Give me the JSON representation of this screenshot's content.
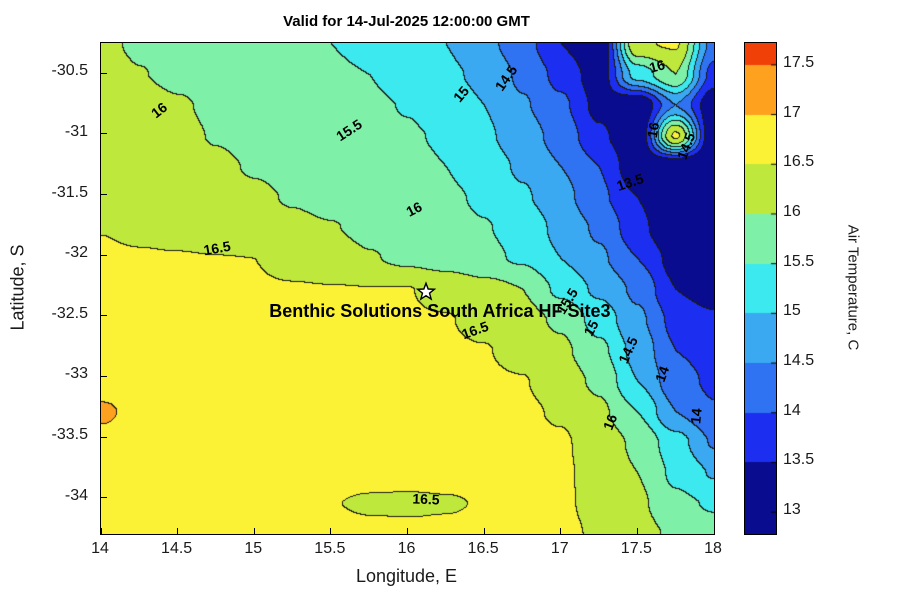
{
  "chart_data": {
    "type": "heatmap",
    "title": "Valid for 14-Jul-2025 12:00:00 GMT",
    "xlabel": "Longitude, E",
    "ylabel": "Latitude, S",
    "colorbar_label": "Air Temperature, C",
    "x_range": [
      14,
      18
    ],
    "y_range": [
      -34.3,
      -30.25
    ],
    "levels": [
      13,
      13.5,
      14,
      14.5,
      15,
      15.5,
      16,
      16.5,
      17,
      17.5
    ],
    "band_colors": [
      "#0a0c8f",
      "#1c2ff0",
      "#2f72f2",
      "#3aa9f2",
      "#3ce9ee",
      "#7ff0a8",
      "#bfe83c",
      "#fcf235",
      "#fea11f",
      "#f04008"
    ],
    "colorbar_range": [
      12.78,
      17.72
    ],
    "x_ticks": [
      {
        "v": 14,
        "label": "14"
      },
      {
        "v": 14.5,
        "label": "14.5"
      },
      {
        "v": 15,
        "label": "15"
      },
      {
        "v": 15.5,
        "label": "15.5"
      },
      {
        "v": 16,
        "label": "16"
      },
      {
        "v": 16.5,
        "label": "16.5"
      },
      {
        "v": 17,
        "label": "17"
      },
      {
        "v": 17.5,
        "label": "17.5"
      },
      {
        "v": 18,
        "label": "18"
      }
    ],
    "y_ticks": [
      {
        "v": -30.5,
        "label": "-30.5"
      },
      {
        "v": -31,
        "label": "-31"
      },
      {
        "v": -31.5,
        "label": "-31.5"
      },
      {
        "v": -32,
        "label": "-32"
      },
      {
        "v": -32.5,
        "label": "-32.5"
      },
      {
        "v": -33,
        "label": "-33"
      },
      {
        "v": -33.5,
        "label": "-33.5"
      },
      {
        "v": -34,
        "label": "-34"
      }
    ],
    "colorbar_ticks": [
      {
        "v": 17.5,
        "label": "17.5"
      },
      {
        "v": 17,
        "label": "17"
      },
      {
        "v": 16.5,
        "label": "16.5"
      },
      {
        "v": 16,
        "label": "16"
      },
      {
        "v": 15.5,
        "label": "15.5"
      },
      {
        "v": 15,
        "label": "15"
      },
      {
        "v": 14.5,
        "label": "14.5"
      },
      {
        "v": 14,
        "label": "14"
      },
      {
        "v": 13.5,
        "label": "13.5"
      },
      {
        "v": 13,
        "label": "13"
      }
    ],
    "values": [
      [
        16.05,
        15.96,
        15.87,
        15.78,
        15.69,
        15.6,
        15.5,
        15.33,
        15.17,
        15.0,
        14.64,
        14.2,
        13.5,
        13.0,
        16.45,
        16.55,
        14.3
      ],
      [
        16.1,
        16.01,
        15.93,
        15.84,
        15.76,
        15.67,
        15.59,
        15.5,
        15.3,
        15.08,
        14.9,
        14.4,
        13.85,
        13.2,
        15.2,
        16.0,
        13.8
      ],
      [
        16.2,
        16.11,
        16.03,
        15.94,
        15.85,
        15.76,
        15.67,
        15.56,
        15.48,
        15.24,
        15.0,
        14.55,
        14.1,
        13.35,
        12.95,
        14.5,
        13.1
      ],
      [
        16.25,
        16.16,
        16.07,
        15.98,
        15.89,
        15.8,
        15.72,
        15.63,
        15.54,
        15.45,
        15.07,
        14.75,
        14.3,
        13.6,
        13.0,
        16.6,
        12.95
      ],
      [
        16.3,
        16.22,
        16.14,
        16.06,
        15.97,
        15.88,
        15.79,
        15.7,
        15.6,
        15.5,
        15.22,
        14.93,
        14.5,
        14.0,
        13.1,
        12.85,
        12.85
      ],
      [
        16.38,
        16.3,
        16.22,
        16.14,
        16.06,
        15.97,
        15.88,
        15.78,
        15.69,
        15.57,
        15.44,
        15.06,
        14.67,
        14.1,
        13.5,
        12.8,
        12.8
      ],
      [
        16.49,
        16.41,
        16.33,
        16.24,
        16.16,
        16.08,
        16.02,
        15.89,
        15.77,
        15.64,
        15.52,
        15.35,
        14.85,
        14.42,
        13.67,
        12.9,
        12.75
      ],
      [
        16.56,
        16.54,
        16.53,
        16.51,
        16.5,
        16.35,
        16.2,
        16.03,
        15.89,
        15.76,
        15.59,
        15.44,
        15.0,
        14.58,
        14.0,
        13.3,
        13.0
      ],
      [
        16.58,
        16.57,
        16.56,
        16.55,
        16.54,
        16.53,
        16.52,
        16.51,
        16.51,
        16.38,
        16.19,
        16.0,
        15.38,
        14.9,
        14.4,
        13.5,
        13.2
      ],
      [
        16.6,
        16.6,
        16.59,
        16.58,
        16.57,
        16.56,
        16.55,
        16.54,
        16.53,
        16.52,
        16.38,
        16.17,
        15.92,
        15.3,
        14.6,
        13.85,
        13.6
      ],
      [
        16.62,
        16.62,
        16.61,
        16.61,
        16.6,
        16.59,
        16.58,
        16.57,
        16.56,
        16.55,
        16.52,
        16.35,
        16.1,
        15.62,
        14.83,
        14.0,
        13.8
      ],
      [
        16.68,
        16.67,
        16.66,
        16.65,
        16.64,
        16.63,
        16.62,
        16.61,
        16.6,
        16.58,
        16.56,
        16.52,
        16.25,
        15.9,
        15.0,
        14.2,
        13.9
      ],
      [
        17.1,
        16.8,
        16.72,
        16.7,
        16.69,
        16.68,
        16.67,
        16.66,
        16.65,
        16.63,
        16.61,
        16.57,
        16.45,
        16.1,
        15.5,
        14.5,
        14.05
      ],
      [
        16.82,
        16.78,
        16.74,
        16.72,
        16.7,
        16.69,
        16.68,
        16.67,
        16.66,
        16.64,
        16.62,
        16.59,
        16.55,
        16.3,
        15.9,
        15.2,
        14.45
      ],
      [
        16.78,
        16.76,
        16.74,
        16.72,
        16.7,
        16.67,
        16.64,
        16.61,
        16.6,
        16.61,
        16.63,
        16.6,
        16.56,
        16.35,
        16.0,
        15.4,
        14.95
      ],
      [
        16.74,
        16.73,
        16.71,
        16.68,
        16.64,
        16.58,
        16.51,
        16.46,
        16.45,
        16.47,
        16.52,
        16.57,
        16.55,
        16.4,
        16.1,
        15.6,
        15.45
      ],
      [
        16.72,
        16.71,
        16.7,
        16.68,
        16.66,
        16.63,
        16.6,
        16.58,
        16.57,
        16.58,
        16.6,
        16.62,
        16.58,
        16.45,
        16.2,
        15.9,
        15.7
      ]
    ],
    "contour_labels": [
      {
        "text": "16",
        "lon": 14.38,
        "lat": -30.8,
        "rot": -38
      },
      {
        "text": "15.5",
        "lon": 15.62,
        "lat": -30.97,
        "rot": -33
      },
      {
        "text": "15",
        "lon": 16.35,
        "lat": -30.67,
        "rot": -50
      },
      {
        "text": "14.5",
        "lon": 16.64,
        "lat": -30.54,
        "rot": -55
      },
      {
        "text": "16",
        "lon": 17.63,
        "lat": -30.44,
        "rot": -15
      },
      {
        "text": "16",
        "lon": 17.6,
        "lat": -30.97,
        "rot": -80
      },
      {
        "text": "14.5",
        "lon": 17.82,
        "lat": -31.1,
        "rot": -70
      },
      {
        "text": "13.5",
        "lon": 17.45,
        "lat": -31.4,
        "rot": -18
      },
      {
        "text": "16",
        "lon": 16.04,
        "lat": -31.62,
        "rot": -27
      },
      {
        "text": "16.5",
        "lon": 14.76,
        "lat": -31.94,
        "rot": -10
      },
      {
        "text": "15.5",
        "lon": 17.04,
        "lat": -32.38,
        "rot": -58
      },
      {
        "text": "15",
        "lon": 17.2,
        "lat": -32.6,
        "rot": -62
      },
      {
        "text": "14.5",
        "lon": 17.44,
        "lat": -32.78,
        "rot": -66
      },
      {
        "text": "14",
        "lon": 17.66,
        "lat": -32.98,
        "rot": -70
      },
      {
        "text": "14",
        "lon": 17.88,
        "lat": -33.33,
        "rot": -85
      },
      {
        "text": "16",
        "lon": 17.32,
        "lat": -33.38,
        "rot": -68
      },
      {
        "text": "16.5",
        "lon": 16.44,
        "lat": -32.62,
        "rot": -20
      },
      {
        "text": "16.5",
        "lon": 16.12,
        "lat": -34.01,
        "rot": 2
      }
    ],
    "marker": {
      "lon": 16.12,
      "lat": -32.3,
      "symbol": "star",
      "label": "Benthic Solutions South Africa HF Site3"
    }
  }
}
